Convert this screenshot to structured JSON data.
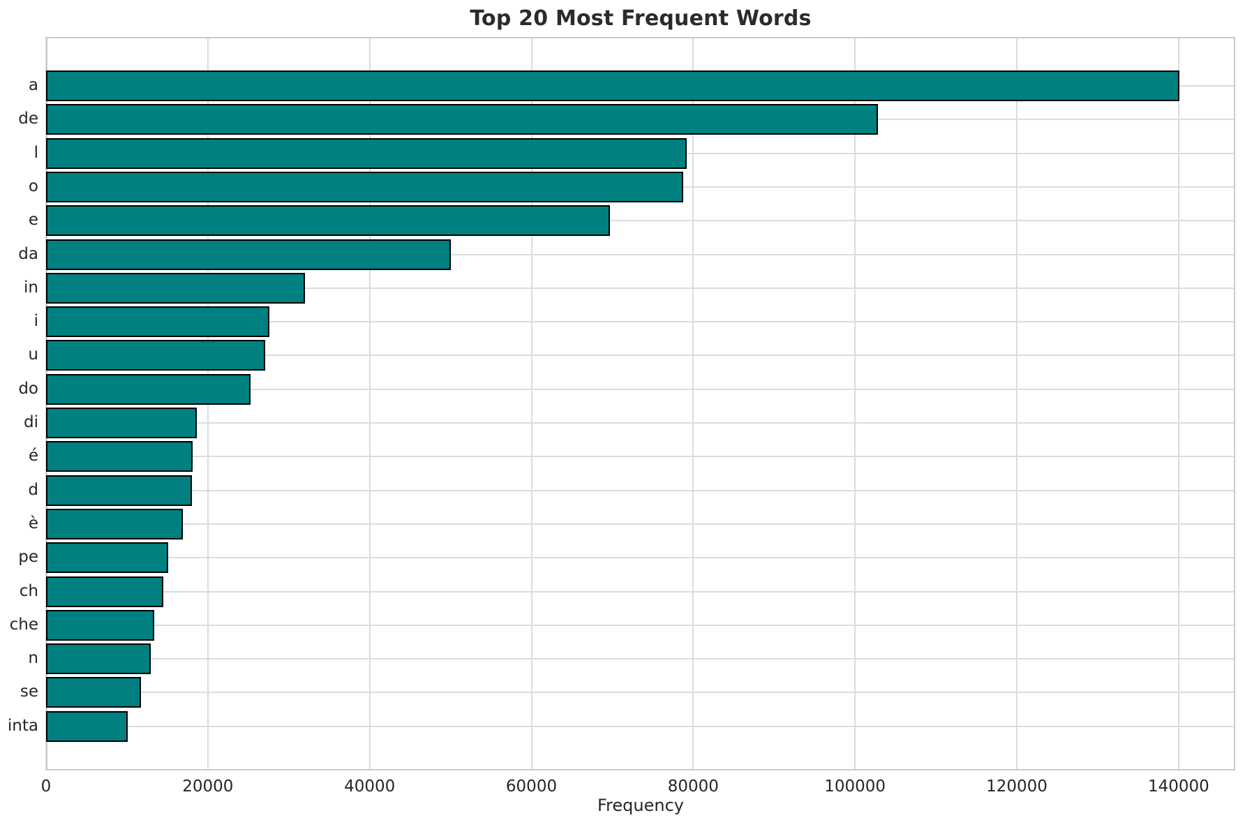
{
  "chart_data": {
    "type": "bar",
    "orientation": "horizontal",
    "title": "Top 20 Most Frequent Words",
    "xlabel": "Frequency",
    "ylabel": "",
    "categories": [
      "a",
      "de",
      "l",
      "o",
      "e",
      "da",
      "in",
      "i",
      "u",
      "do",
      "di",
      "é",
      "d",
      "è",
      "pe",
      "ch",
      "che",
      "n",
      "se",
      "inta"
    ],
    "values": [
      140100,
      102800,
      79200,
      78800,
      69700,
      50000,
      32000,
      27600,
      27100,
      25300,
      18600,
      18100,
      18000,
      16900,
      15100,
      14500,
      13400,
      12900,
      11700,
      10100
    ],
    "xlim": [
      0,
      147000
    ],
    "xticks": [
      0,
      20000,
      40000,
      60000,
      80000,
      100000,
      120000,
      140000
    ],
    "xtick_labels": [
      "0",
      "20000",
      "40000",
      "60000",
      "80000",
      "100000",
      "120000",
      "140000"
    ],
    "grid": true,
    "legend": null,
    "bar_color": "#008080",
    "bar_edge_color": "#000000",
    "background_color": "#ffffff",
    "grid_color": "#dcdcdc",
    "text_color": "#262626"
  }
}
